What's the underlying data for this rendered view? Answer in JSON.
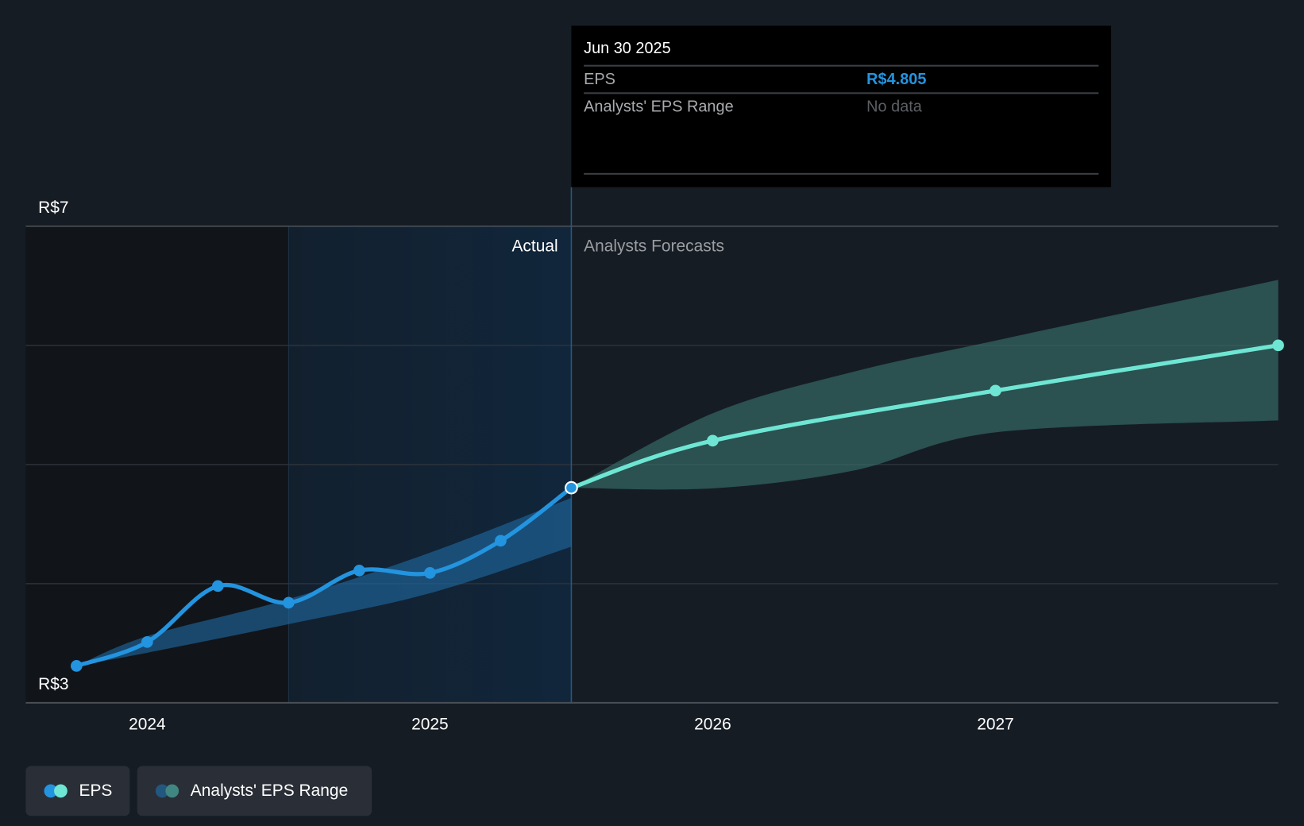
{
  "tooltip": {
    "date": "Jun 30 2025",
    "eps_label": "EPS",
    "eps_value": "R$4.805",
    "range_label": "Analysts' EPS Range",
    "range_value": "No data"
  },
  "legend": [
    {
      "label": "EPS"
    },
    {
      "label": "Analysts' EPS Range"
    }
  ],
  "colors": {
    "bg": "#161c24",
    "eps_actual": "#2394df",
    "eps_forecast": "#6ee6d3",
    "range_actual": "#1d5a8a",
    "range_forecast": "#2f5654",
    "eps_value": "#2394df"
  },
  "chart_data": {
    "type": "line",
    "title": "",
    "ylabel": "EPS",
    "ylim": [
      3,
      7
    ],
    "y_tick_labels": [
      "R$7",
      "R$3"
    ],
    "x_tick_labels": [
      "2024",
      "2025",
      "2026",
      "2027"
    ],
    "x_ticks": [
      2024,
      2025,
      2026,
      2027
    ],
    "xlim": [
      2023.6,
      2028.0
    ],
    "region_labels": {
      "actual": "Actual",
      "forecast": "Analysts Forecasts"
    },
    "split_x": 2025.5,
    "highlight_from_x": 2024.5,
    "series": [
      {
        "name": "EPS",
        "kind": "actual",
        "x": [
          2023.75,
          2024.0,
          2024.25,
          2024.5,
          2024.75,
          2025.0,
          2025.25,
          2025.5
        ],
        "values": [
          3.31,
          3.51,
          3.98,
          3.84,
          4.11,
          4.09,
          4.36,
          4.805
        ]
      },
      {
        "name": "EPS",
        "kind": "forecast",
        "x": [
          2025.5,
          2026.0,
          2027.0,
          2028.0
        ],
        "values": [
          4.805,
          5.2,
          5.62,
          6.0
        ]
      },
      {
        "name": "Analysts' EPS Range",
        "kind": "actual-range",
        "x": [
          2023.75,
          2024.0,
          2024.5,
          2025.0,
          2025.5
        ],
        "low": [
          3.31,
          3.42,
          3.66,
          3.92,
          4.31
        ],
        "high": [
          3.31,
          3.56,
          3.87,
          4.26,
          4.72
        ]
      },
      {
        "name": "Analysts' EPS Range",
        "kind": "forecast-range",
        "x": [
          2025.5,
          2026.0,
          2026.5,
          2027.0,
          2028.0
        ],
        "low": [
          4.805,
          4.8,
          4.95,
          5.27,
          5.37
        ],
        "high": [
          4.805,
          5.43,
          5.78,
          6.04,
          6.55
        ]
      }
    ]
  }
}
